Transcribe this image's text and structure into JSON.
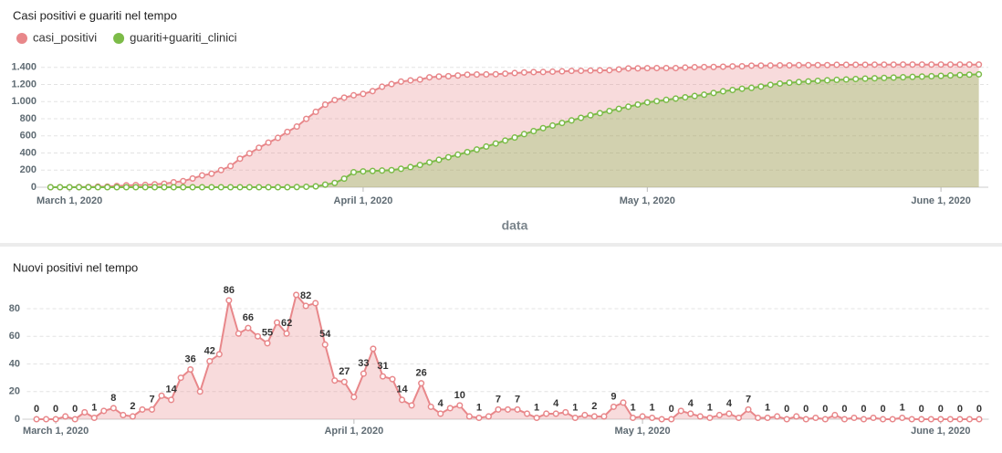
{
  "chart_data": [
    {
      "type": "area",
      "title": "Casi positivi e guariti nel tempo",
      "x_label": "data",
      "legend": "top-left",
      "grid": true,
      "x": [
        "2020-02-28",
        "2020-02-29",
        "2020-03-01",
        "2020-03-02",
        "2020-03-03",
        "2020-03-04",
        "2020-03-05",
        "2020-03-06",
        "2020-03-07",
        "2020-03-08",
        "2020-03-09",
        "2020-03-10",
        "2020-03-11",
        "2020-03-12",
        "2020-03-13",
        "2020-03-14",
        "2020-03-15",
        "2020-03-16",
        "2020-03-17",
        "2020-03-18",
        "2020-03-19",
        "2020-03-20",
        "2020-03-21",
        "2020-03-22",
        "2020-03-23",
        "2020-03-24",
        "2020-03-25",
        "2020-03-26",
        "2020-03-27",
        "2020-03-28",
        "2020-03-29",
        "2020-03-30",
        "2020-03-31",
        "2020-04-01",
        "2020-04-02",
        "2020-04-03",
        "2020-04-04",
        "2020-04-05",
        "2020-04-06",
        "2020-04-07",
        "2020-04-08",
        "2020-04-09",
        "2020-04-10",
        "2020-04-11",
        "2020-04-12",
        "2020-04-13",
        "2020-04-14",
        "2020-04-15",
        "2020-04-16",
        "2020-04-17",
        "2020-04-18",
        "2020-04-19",
        "2020-04-20",
        "2020-04-21",
        "2020-04-22",
        "2020-04-23",
        "2020-04-24",
        "2020-04-25",
        "2020-04-26",
        "2020-04-27",
        "2020-04-28",
        "2020-04-29",
        "2020-04-30",
        "2020-05-01",
        "2020-05-02",
        "2020-05-03",
        "2020-05-04",
        "2020-05-05",
        "2020-05-06",
        "2020-05-07",
        "2020-05-08",
        "2020-05-09",
        "2020-05-10",
        "2020-05-11",
        "2020-05-12",
        "2020-05-13",
        "2020-05-14",
        "2020-05-15",
        "2020-05-16",
        "2020-05-17",
        "2020-05-18",
        "2020-05-19",
        "2020-05-20",
        "2020-05-21",
        "2020-05-22",
        "2020-05-23",
        "2020-05-24",
        "2020-05-25",
        "2020-05-26",
        "2020-05-27",
        "2020-05-28",
        "2020-05-29",
        "2020-05-30",
        "2020-05-31",
        "2020-06-01",
        "2020-06-02",
        "2020-06-03",
        "2020-06-04",
        "2020-06-05"
      ],
      "series": [
        {
          "name": "casi_positivi",
          "color": "#e8878a",
          "values": [
            0,
            0,
            0,
            2,
            2,
            7,
            8,
            14,
            22,
            25,
            27,
            34,
            41,
            58,
            72,
            102,
            138,
            158,
            200,
            247,
            333,
            395,
            461,
            521,
            576,
            646,
            708,
            798,
            880,
            964,
            1018,
            1046,
            1073,
            1089,
            1122,
            1173,
            1204,
            1233,
            1247,
            1257,
            1283,
            1292,
            1296,
            1304,
            1314,
            1316,
            1317,
            1319,
            1326,
            1333,
            1340,
            1344,
            1345,
            1349,
            1353,
            1358,
            1359,
            1362,
            1364,
            1366,
            1375,
            1387,
            1388,
            1390,
            1391,
            1391,
            1391,
            1397,
            1401,
            1403,
            1404,
            1407,
            1411,
            1412,
            1419,
            1420,
            1421,
            1423,
            1423,
            1425,
            1425,
            1426,
            1426,
            1429,
            1429,
            1430,
            1430,
            1431,
            1431,
            1431,
            1432,
            1432,
            1432,
            1432,
            1432,
            1432,
            1432,
            1432,
            1432
          ]
        },
        {
          "name": "guariti+guariti_clinici",
          "color": "#7cbb48",
          "values": [
            0,
            0,
            0,
            0,
            0,
            0,
            0,
            0,
            0,
            0,
            0,
            0,
            0,
            0,
            0,
            0,
            0,
            0,
            0,
            0,
            0,
            0,
            0,
            0,
            0,
            0,
            2,
            5,
            10,
            30,
            50,
            100,
            175,
            185,
            190,
            195,
            200,
            215,
            235,
            260,
            290,
            320,
            350,
            380,
            410,
            440,
            475,
            510,
            545,
            580,
            620,
            655,
            690,
            720,
            750,
            780,
            810,
            840,
            865,
            890,
            915,
            940,
            965,
            990,
            1005,
            1020,
            1035,
            1050,
            1065,
            1080,
            1100,
            1120,
            1135,
            1150,
            1160,
            1175,
            1195,
            1210,
            1220,
            1228,
            1235,
            1242,
            1248,
            1253,
            1258,
            1263,
            1268,
            1272,
            1276,
            1280,
            1284,
            1288,
            1292,
            1296,
            1300,
            1305,
            1310,
            1314,
            1318
          ]
        }
      ],
      "xlim": [
        "2020-02-27",
        "2020-06-06"
      ],
      "xticks": [
        {
          "value": "2020-03-01",
          "label": "March 1, 2020"
        },
        {
          "value": "2020-04-01",
          "label": "April 1, 2020"
        },
        {
          "value": "2020-05-01",
          "label": "May 1, 2020"
        },
        {
          "value": "2020-06-01",
          "label": "June 1, 2020"
        }
      ],
      "ylim": [
        0,
        1450
      ],
      "yticks": [
        0,
        200,
        400,
        600,
        800,
        {
          "value": 1000,
          "label": "1.000"
        },
        {
          "value": 1200,
          "label": "1.200"
        },
        {
          "value": 1400,
          "label": "1.400"
        }
      ]
    },
    {
      "type": "area",
      "title": "Nuovi positivi nel tempo",
      "grid": true,
      "color": "#e8878a",
      "x": [
        "2020-02-28",
        "2020-02-29",
        "2020-03-01",
        "2020-03-02",
        "2020-03-03",
        "2020-03-04",
        "2020-03-05",
        "2020-03-06",
        "2020-03-07",
        "2020-03-08",
        "2020-03-09",
        "2020-03-10",
        "2020-03-11",
        "2020-03-12",
        "2020-03-13",
        "2020-03-14",
        "2020-03-15",
        "2020-03-16",
        "2020-03-17",
        "2020-03-18",
        "2020-03-19",
        "2020-03-20",
        "2020-03-21",
        "2020-03-22",
        "2020-03-23",
        "2020-03-24",
        "2020-03-25",
        "2020-03-26",
        "2020-03-27",
        "2020-03-28",
        "2020-03-29",
        "2020-03-30",
        "2020-03-31",
        "2020-04-01",
        "2020-04-02",
        "2020-04-03",
        "2020-04-04",
        "2020-04-05",
        "2020-04-06",
        "2020-04-07",
        "2020-04-08",
        "2020-04-09",
        "2020-04-10",
        "2020-04-11",
        "2020-04-12",
        "2020-04-13",
        "2020-04-14",
        "2020-04-15",
        "2020-04-16",
        "2020-04-17",
        "2020-04-18",
        "2020-04-19",
        "2020-04-20",
        "2020-04-21",
        "2020-04-22",
        "2020-04-23",
        "2020-04-24",
        "2020-04-25",
        "2020-04-26",
        "2020-04-27",
        "2020-04-28",
        "2020-04-29",
        "2020-04-30",
        "2020-05-01",
        "2020-05-02",
        "2020-05-03",
        "2020-05-04",
        "2020-05-05",
        "2020-05-06",
        "2020-05-07",
        "2020-05-08",
        "2020-05-09",
        "2020-05-10",
        "2020-05-11",
        "2020-05-12",
        "2020-05-13",
        "2020-05-14",
        "2020-05-15",
        "2020-05-16",
        "2020-05-17",
        "2020-05-18",
        "2020-05-19",
        "2020-05-20",
        "2020-05-21",
        "2020-05-22",
        "2020-05-23",
        "2020-05-24",
        "2020-05-25",
        "2020-05-26",
        "2020-05-27",
        "2020-05-28",
        "2020-05-29",
        "2020-05-30",
        "2020-05-31",
        "2020-06-01",
        "2020-06-02",
        "2020-06-03",
        "2020-06-04",
        "2020-06-05"
      ],
      "values": [
        0,
        0,
        0,
        2,
        0,
        5,
        1,
        6,
        8,
        3,
        2,
        7,
        7,
        17,
        14,
        30,
        36,
        20,
        42,
        47,
        86,
        62,
        66,
        60,
        55,
        70,
        62,
        90,
        82,
        84,
        54,
        28,
        27,
        16,
        33,
        51,
        31,
        29,
        14,
        10,
        26,
        9,
        4,
        8,
        10,
        2,
        1,
        2,
        7,
        7,
        7,
        4,
        1,
        4,
        4,
        5,
        1,
        3,
        2,
        2,
        9,
        12,
        1,
        2,
        1,
        0,
        0,
        6,
        4,
        2,
        1,
        3,
        4,
        1,
        7,
        1,
        1,
        2,
        0,
        2,
        0,
        1,
        0,
        3,
        0,
        1,
        0,
        1,
        0,
        0,
        1,
        0,
        0,
        0,
        0,
        0,
        0,
        0,
        0
      ],
      "xlim": [
        "2020-02-27",
        "2020-06-06"
      ],
      "xticks": [
        {
          "value": "2020-03-01",
          "label": "March 1, 2020"
        },
        {
          "value": "2020-04-01",
          "label": "April 1, 2020"
        },
        {
          "value": "2020-05-01",
          "label": "May 1, 2020"
        },
        {
          "value": "2020-06-01",
          "label": "June 1, 2020"
        }
      ],
      "ylim": [
        0,
        100
      ],
      "yticks": [
        0,
        20,
        40,
        60,
        80
      ]
    }
  ]
}
